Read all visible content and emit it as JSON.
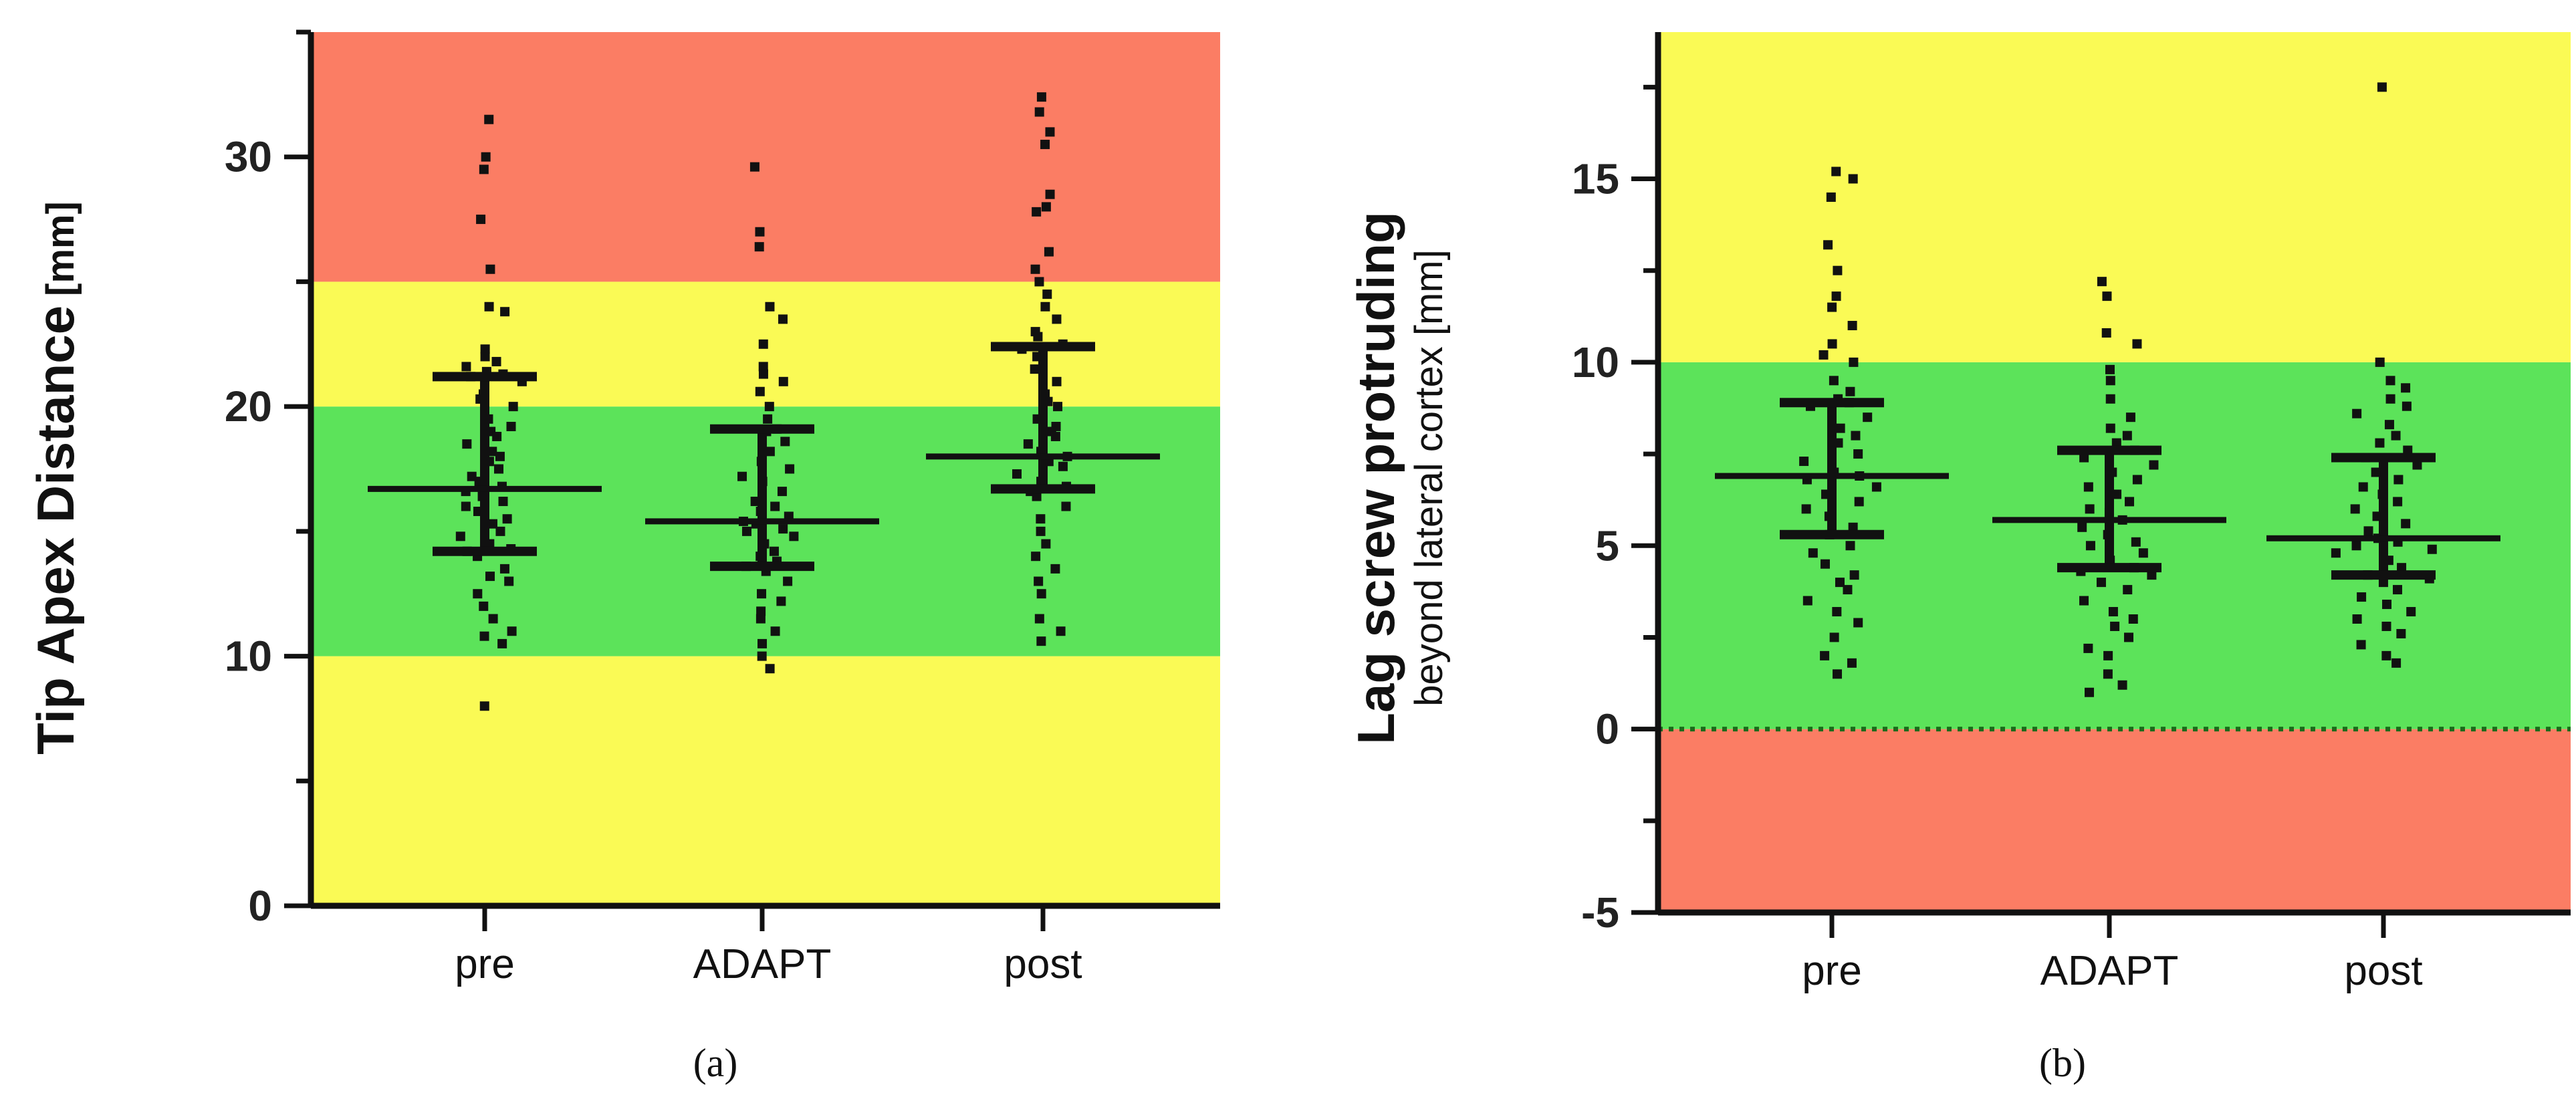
{
  "colors": {
    "red": "#fb7d64",
    "yellow": "#fafa55",
    "green": "#5ce35a",
    "ink": "#111111"
  },
  "chart_data": [
    {
      "id": "a",
      "type": "scatter",
      "caption": "(a)",
      "ylabel_bold": "Tip Apex Distance",
      "ylabel_unit": "[mm]",
      "ylabel_sub": "",
      "ylim": [
        0,
        35
      ],
      "yticks": [
        0,
        10,
        20,
        30
      ],
      "categories": [
        "pre",
        "ADAPT",
        "post"
      ],
      "zones": [
        {
          "from": 0,
          "to": 10,
          "color": "yellow"
        },
        {
          "from": 10,
          "to": 20,
          "color": "green"
        },
        {
          "from": 20,
          "to": 25,
          "color": "yellow"
        },
        {
          "from": 25,
          "to": 35,
          "color": "red"
        }
      ],
      "reference_line": null,
      "series": [
        {
          "name": "pre",
          "median": 16.7,
          "q1": 14.2,
          "q3": 21.2,
          "points": [
            31.5,
            30.0,
            29.5,
            27.5,
            25.5,
            24.0,
            23.8,
            22.3,
            22.0,
            21.8,
            21.6,
            21.4,
            21.3,
            21.2,
            21.0,
            20.5,
            20.3,
            20.0,
            19.5,
            19.2,
            19.0,
            18.8,
            18.5,
            18.2,
            18.0,
            17.8,
            17.5,
            17.2,
            17.0,
            16.8,
            16.6,
            16.4,
            16.2,
            16.0,
            15.8,
            15.5,
            15.3,
            15.0,
            14.8,
            14.5,
            14.3,
            14.2,
            14.0,
            13.5,
            13.2,
            13.0,
            12.5,
            12.0,
            11.5,
            11.0,
            10.8,
            10.5,
            8.0
          ]
        },
        {
          "name": "ADAPT",
          "median": 15.4,
          "q1": 13.6,
          "q3": 19.1,
          "points": [
            29.6,
            27.0,
            26.4,
            24.0,
            23.5,
            22.5,
            21.6,
            21.3,
            21.0,
            20.6,
            20.0,
            19.5,
            19.1,
            19.0,
            18.6,
            18.2,
            17.8,
            17.5,
            17.2,
            17.0,
            16.6,
            16.2,
            16.0,
            15.8,
            15.6,
            15.4,
            15.3,
            15.1,
            15.0,
            14.8,
            14.5,
            14.2,
            14.0,
            13.8,
            13.6,
            13.4,
            13.0,
            12.5,
            12.2,
            11.8,
            11.5,
            11.0,
            10.5,
            10.0,
            9.5
          ]
        },
        {
          "name": "post",
          "median": 18.0,
          "q1": 16.7,
          "q3": 22.4,
          "points": [
            32.4,
            31.8,
            31.0,
            30.5,
            28.5,
            28.0,
            27.8,
            26.2,
            25.5,
            25.0,
            24.5,
            24.0,
            23.5,
            23.0,
            22.8,
            22.5,
            22.3,
            22.0,
            21.5,
            21.0,
            20.5,
            20.2,
            20.0,
            19.5,
            19.2,
            19.0,
            18.8,
            18.5,
            18.2,
            18.0,
            17.8,
            17.6,
            17.3,
            17.0,
            16.8,
            16.6,
            16.4,
            16.0,
            15.5,
            15.0,
            14.5,
            14.0,
            13.5,
            13.0,
            12.5,
            11.5,
            11.0,
            10.6
          ]
        }
      ]
    },
    {
      "id": "b",
      "type": "scatter",
      "caption": "(b)",
      "ylabel_bold": "Lag screw protruding",
      "ylabel_unit": "",
      "ylabel_sub": "beyond lateral cortex [mm]",
      "ylim": [
        -5,
        19
      ],
      "yticks": [
        -5,
        0,
        5,
        10,
        15
      ],
      "categories": [
        "pre",
        "ADAPT",
        "post"
      ],
      "zones": [
        {
          "from": -5,
          "to": 0,
          "color": "red"
        },
        {
          "from": 0,
          "to": 10,
          "color": "green"
        },
        {
          "from": 10,
          "to": 19,
          "color": "yellow"
        }
      ],
      "reference_line": 0,
      "series": [
        {
          "name": "pre",
          "median": 6.9,
          "q1": 5.3,
          "q3": 8.9,
          "points": [
            15.2,
            15.0,
            14.5,
            13.2,
            12.5,
            11.8,
            11.5,
            11.0,
            10.5,
            10.2,
            10.0,
            9.5,
            9.2,
            9.0,
            8.9,
            8.8,
            8.5,
            8.2,
            8.0,
            7.8,
            7.5,
            7.3,
            7.0,
            6.9,
            6.8,
            6.6,
            6.4,
            6.2,
            6.0,
            5.8,
            5.5,
            5.3,
            5.0,
            4.8,
            4.5,
            4.2,
            4.0,
            3.8,
            3.5,
            3.2,
            2.9,
            2.5,
            2.0,
            1.8,
            1.5
          ]
        },
        {
          "name": "ADAPT",
          "median": 5.7,
          "q1": 4.4,
          "q3": 7.6,
          "points": [
            12.2,
            11.8,
            10.8,
            10.5,
            9.8,
            9.5,
            9.0,
            8.5,
            8.2,
            8.0,
            7.8,
            7.6,
            7.4,
            7.2,
            7.0,
            6.8,
            6.6,
            6.4,
            6.2,
            6.0,
            5.9,
            5.7,
            5.5,
            5.3,
            5.1,
            5.0,
            4.8,
            4.6,
            4.4,
            4.3,
            4.2,
            4.0,
            3.8,
            3.5,
            3.2,
            3.0,
            2.8,
            2.5,
            2.2,
            2.0,
            1.5,
            1.2,
            1.0
          ]
        },
        {
          "name": "post",
          "median": 5.2,
          "q1": 4.2,
          "q3": 7.4,
          "points": [
            17.5,
            10.0,
            9.5,
            9.3,
            9.0,
            8.8,
            8.6,
            8.3,
            8.0,
            7.8,
            7.6,
            7.4,
            7.2,
            7.0,
            6.8,
            6.6,
            6.4,
            6.2,
            6.0,
            5.8,
            5.6,
            5.4,
            5.2,
            5.1,
            5.0,
            4.9,
            4.8,
            4.6,
            4.4,
            4.2,
            4.1,
            4.0,
            3.8,
            3.6,
            3.4,
            3.2,
            3.0,
            2.8,
            2.6,
            2.3,
            2.0,
            1.8
          ]
        }
      ]
    }
  ]
}
